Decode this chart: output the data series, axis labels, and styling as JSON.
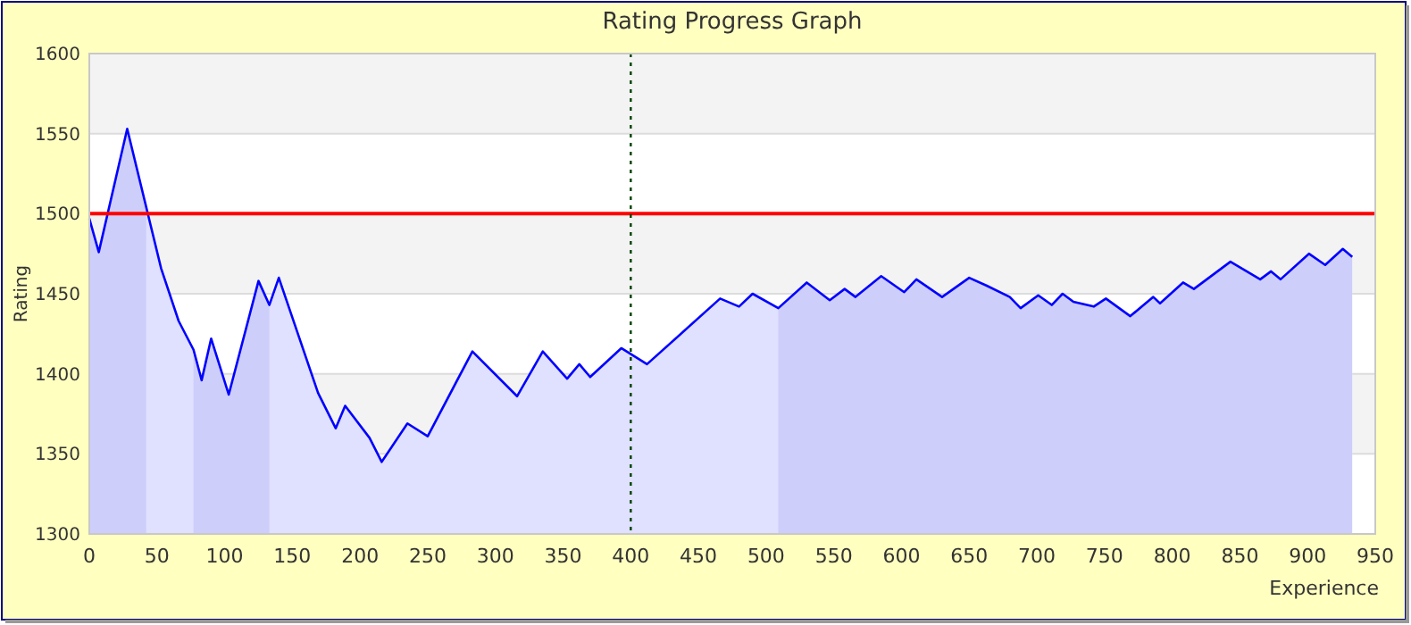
{
  "chart_data": {
    "type": "area",
    "title": "Rating Progress Graph",
    "xlabel": "Experience",
    "ylabel": "Rating",
    "xlim": [
      0,
      950
    ],
    "xticks": [
      0,
      50,
      100,
      150,
      200,
      250,
      300,
      350,
      400,
      450,
      500,
      550,
      600,
      650,
      700,
      750,
      800,
      850,
      900,
      950
    ],
    "ylim": [
      1300,
      1600
    ],
    "yticks": [
      1300,
      1350,
      1400,
      1450,
      1500,
      1550,
      1600
    ],
    "grid": "y",
    "ref_lines": [
      {
        "axis": "y",
        "value": 1500,
        "color": "#ff0000",
        "line_style": "solid"
      },
      {
        "axis": "x",
        "value": 400,
        "color": "#004400",
        "line_style": "dotted"
      }
    ],
    "bands": [
      {
        "axis": "x",
        "from": 0,
        "to": 42,
        "color": "#ebebfb"
      },
      {
        "axis": "x",
        "from": 77,
        "to": 133,
        "color": "#ebebfb"
      },
      {
        "axis": "x",
        "from": 509,
        "to": 933,
        "color": "#ebebfb"
      }
    ],
    "series": [
      {
        "color": "#0000ff",
        "x": [
          0,
          7,
          28,
          53,
          66,
          77,
          83,
          90,
          103,
          125,
          133,
          140,
          169,
          182,
          189,
          207,
          216,
          235,
          250,
          283,
          316,
          335,
          353,
          362,
          370,
          393,
          412,
          466,
          480,
          490,
          509,
          530,
          547,
          558,
          566,
          585,
          602,
          611,
          630,
          650,
          663,
          680,
          688,
          701,
          711,
          719,
          727,
          742,
          751,
          769,
          786,
          791,
          808,
          816,
          843,
          865,
          873,
          880,
          901,
          913,
          926,
          933
        ],
        "values": [
          1497,
          1476,
          1553,
          1466,
          1433,
          1415,
          1396,
          1422,
          1387,
          1458,
          1443,
          1460,
          1388,
          1366,
          1380,
          1360,
          1345,
          1369,
          1361,
          1414,
          1386,
          1414,
          1397,
          1406,
          1398,
          1416,
          1406,
          1447,
          1442,
          1450,
          1441,
          1457,
          1446,
          1453,
          1448,
          1461,
          1451,
          1459,
          1448,
          1460,
          1455,
          1448,
          1441,
          1449,
          1443,
          1450,
          1445,
          1442,
          1447,
          1436,
          1448,
          1444,
          1457,
          1453,
          1470,
          1459,
          1464,
          1459,
          1475,
          1468,
          1478,
          1473
        ]
      }
    ]
  }
}
